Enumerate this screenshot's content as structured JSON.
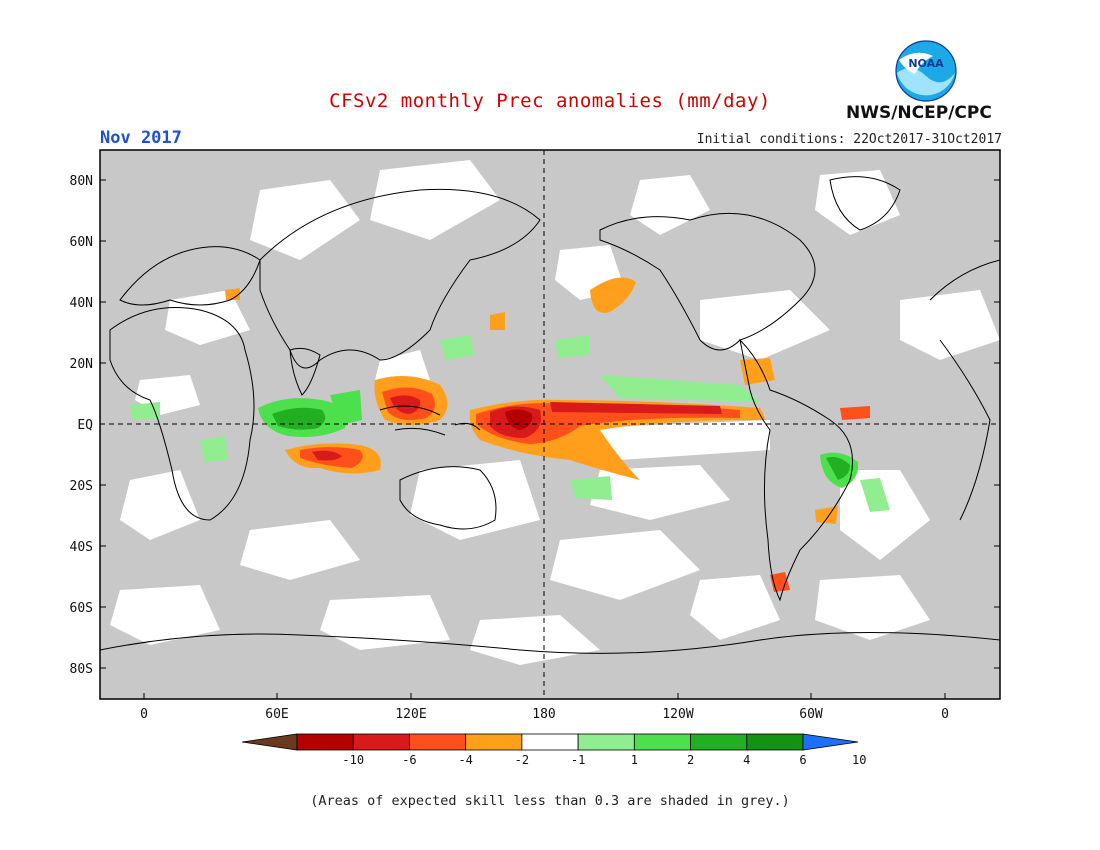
{
  "header": {
    "title": "CFSv2 monthly Prec anomalies (mm/day)",
    "month": "Nov 2017",
    "initial_conditions": "Initial conditions: 22Oct2017-31Oct2017",
    "agency": "NWS/NCEP/CPC",
    "logo_text": "NOAA"
  },
  "map": {
    "lat_labels": [
      "80N",
      "60N",
      "40N",
      "20N",
      "EQ",
      "20S",
      "40S",
      "60S",
      "80S"
    ],
    "lon_labels": [
      "0",
      "60E",
      "120E",
      "180",
      "120W",
      "60W",
      "0"
    ],
    "grey_note_color": "#c8c8c8"
  },
  "legend": {
    "tick_labels": [
      "-10",
      "-6",
      "-4",
      "-2",
      "-1",
      "1",
      "2",
      "4",
      "6",
      "10"
    ],
    "colors": [
      "#6b3a1e",
      "#b30000",
      "#d81a1a",
      "#ff4f1a",
      "#ff9f1c",
      "#ffffff",
      "#90ee90",
      "#4de04d",
      "#22b022",
      "#129412",
      "#1f6fff"
    ]
  },
  "footnote": "(Areas of expected skill less than 0.3 are shaded in grey.)"
}
